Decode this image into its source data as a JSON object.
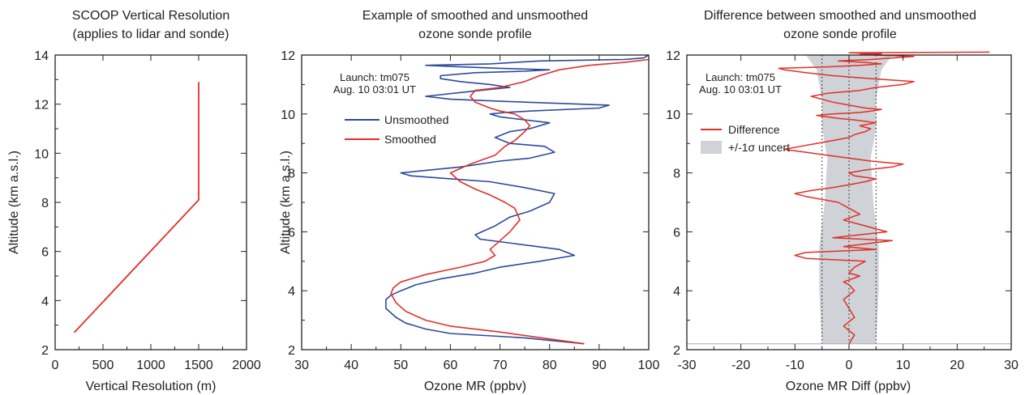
{
  "colors": {
    "unsmoothed": "#2b4a9b",
    "smoothed": "#e0302a",
    "difference": "#e0302a",
    "uncert": "#cfd2d6",
    "axis": "#222222"
  },
  "chart_data": [
    {
      "type": "line",
      "title": "SCOOP Vertical Resolution",
      "subtitle": "(applies to lidar and sonde)",
      "xlabel": "Vertical Resolution (m)",
      "ylabel": "Altitude (km a.s.l.)",
      "xlim": [
        0,
        2000
      ],
      "ylim": [
        2,
        14
      ],
      "xticks": [
        0,
        500,
        1000,
        1500,
        2000
      ],
      "yticks": [
        2,
        4,
        6,
        8,
        10,
        12,
        14
      ],
      "series": [
        {
          "x": [
            200,
            1500,
            1500
          ],
          "y": [
            2.7,
            8.1,
            12.9
          ]
        }
      ]
    },
    {
      "type": "line",
      "title": "Example of smoothed and unsmoothed",
      "subtitle": "ozone sonde profile",
      "xlabel": "Ozone MR (ppbv)",
      "ylabel": "Altitude (km a.s.l.)",
      "xlim": [
        30,
        100
      ],
      "ylim": [
        2,
        12
      ],
      "xticks": [
        30,
        40,
        50,
        60,
        70,
        80,
        90,
        100
      ],
      "yticks": [
        2,
        4,
        6,
        8,
        10,
        12
      ],
      "annotation": [
        "Launch: tm075",
        "Aug. 10 03:01 UT"
      ],
      "series": [
        {
          "name": "Unsmoothed",
          "x": [
            87,
            75,
            60,
            55,
            51,
            49,
            47,
            47,
            48,
            50,
            53,
            58,
            65,
            70,
            78,
            85,
            82,
            73,
            66,
            65,
            69,
            72,
            76,
            80,
            81,
            75,
            68,
            60,
            52,
            50,
            62,
            70,
            76,
            81,
            79,
            72,
            69,
            72,
            76,
            80,
            75,
            70,
            68,
            71,
            76,
            90,
            92,
            75,
            60,
            55,
            66,
            72,
            68,
            62,
            58,
            58,
            65,
            75,
            80,
            70,
            62,
            55,
            68,
            78,
            95,
            99,
            100
          ],
          "y": [
            2.2,
            2.4,
            2.55,
            2.7,
            2.9,
            3.1,
            3.4,
            3.7,
            3.85,
            4.0,
            4.2,
            4.4,
            4.6,
            4.8,
            5.0,
            5.2,
            5.4,
            5.6,
            5.75,
            5.9,
            6.2,
            6.5,
            6.7,
            7.0,
            7.3,
            7.5,
            7.7,
            7.8,
            7.9,
            8.0,
            8.2,
            8.4,
            8.5,
            8.7,
            8.9,
            9.0,
            9.2,
            9.4,
            9.5,
            9.7,
            9.8,
            9.9,
            10.0,
            10.05,
            10.1,
            10.2,
            10.3,
            10.4,
            10.5,
            10.6,
            10.8,
            10.9,
            11.0,
            11.1,
            11.2,
            11.3,
            11.4,
            11.45,
            11.5,
            11.55,
            11.6,
            11.65,
            11.7,
            11.8,
            11.85,
            11.9,
            12.0
          ]
        },
        {
          "name": "Smoothed",
          "x": [
            87,
            70,
            60,
            55,
            51,
            49,
            48,
            48.5,
            50,
            55,
            62,
            67,
            69,
            68,
            70,
            72,
            74,
            73,
            71,
            68,
            65,
            62,
            60,
            64,
            69,
            71,
            73,
            75,
            76,
            75,
            73,
            70,
            68,
            65,
            64,
            65,
            70,
            75,
            78,
            82,
            88,
            95,
            100
          ],
          "y": [
            2.2,
            2.6,
            2.8,
            3.0,
            3.3,
            3.6,
            3.9,
            4.1,
            4.3,
            4.55,
            4.8,
            5.0,
            5.2,
            5.4,
            5.7,
            6.0,
            6.4,
            6.8,
            7.0,
            7.25,
            7.45,
            7.7,
            8.0,
            8.3,
            8.6,
            8.9,
            9.1,
            9.4,
            9.6,
            9.8,
            10.0,
            10.1,
            10.2,
            10.4,
            10.6,
            10.8,
            10.9,
            11.1,
            11.3,
            11.5,
            11.65,
            11.75,
            11.85
          ]
        }
      ]
    },
    {
      "type": "line",
      "title": "Difference between smoothed and unsmoothed",
      "subtitle": "ozone sonde profile",
      "xlabel": "Ozone MR Diff (ppbv)",
      "ylabel": "",
      "xlim": [
        -30,
        30
      ],
      "ylim": [
        2,
        12
      ],
      "xticks": [
        -30,
        -20,
        -10,
        0,
        10,
        20,
        30
      ],
      "yticks": [
        2,
        4,
        6,
        8,
        10,
        12
      ],
      "annotation": [
        "Launch: tm075",
        "Aug. 10 03:01 UT"
      ],
      "reference_lines_x": [
        -5,
        0,
        5
      ],
      "baseline_y": 2.2,
      "series": [
        {
          "name": "Difference",
          "x": [
            0,
            1,
            -1,
            1,
            0,
            -1,
            1,
            0,
            -1,
            2,
            0,
            1,
            3,
            -8,
            -10,
            -8,
            5,
            -1,
            8,
            -3,
            2,
            7,
            3,
            -1,
            2,
            0,
            -2,
            -8,
            -10,
            -7,
            -3,
            0,
            3,
            5,
            1,
            0,
            3,
            8,
            10,
            4,
            0,
            -4,
            -8,
            -12,
            -9,
            -6,
            -3,
            0,
            1,
            3,
            4,
            2,
            5,
            3,
            1,
            -2,
            -4,
            -6,
            -3,
            2,
            4,
            6,
            3,
            0,
            -3,
            -5,
            -7,
            -4,
            2,
            5,
            10,
            12,
            4,
            -3,
            -8,
            -12,
            -13,
            -4,
            2,
            6,
            3,
            -2,
            4,
            8,
            12,
            5,
            2,
            6,
            3,
            0,
            26
          ],
          "y": [
            2.2,
            2.5,
            2.8,
            3.1,
            3.4,
            3.7,
            4.0,
            4.2,
            4.3,
            4.5,
            4.6,
            4.8,
            5.0,
            5.1,
            5.2,
            5.3,
            5.4,
            5.5,
            5.7,
            5.8,
            5.9,
            6.0,
            6.2,
            6.4,
            6.6,
            6.8,
            7.0,
            7.2,
            7.3,
            7.4,
            7.5,
            7.6,
            7.7,
            7.8,
            7.9,
            8.0,
            8.1,
            8.2,
            8.3,
            8.4,
            8.5,
            8.6,
            8.7,
            8.8,
            8.9,
            9.0,
            9.1,
            9.2,
            9.3,
            9.4,
            9.5,
            9.6,
            9.7,
            9.75,
            9.8,
            9.85,
            9.9,
            9.95,
            10.0,
            10.05,
            10.1,
            10.15,
            10.2,
            10.3,
            10.4,
            10.5,
            10.6,
            10.7,
            10.8,
            10.9,
            11.0,
            11.1,
            11.2,
            11.3,
            11.4,
            11.5,
            11.55,
            11.6,
            11.65,
            11.7,
            11.75,
            11.8,
            11.85,
            11.9,
            11.95,
            12.0,
            12.02,
            12.04,
            12.06,
            12.08,
            12.1
          ]
        },
        {
          "name": "+/-1σ uncert",
          "band_y": [
            2.2,
            4.0,
            5.5,
            7.0,
            8.5,
            9.5,
            10.5,
            11.5,
            12.0
          ],
          "band_halfwidth": [
            5.0,
            5.5,
            5.5,
            4.5,
            4.0,
            5.0,
            5.0,
            6.0,
            8.0
          ]
        }
      ]
    }
  ]
}
